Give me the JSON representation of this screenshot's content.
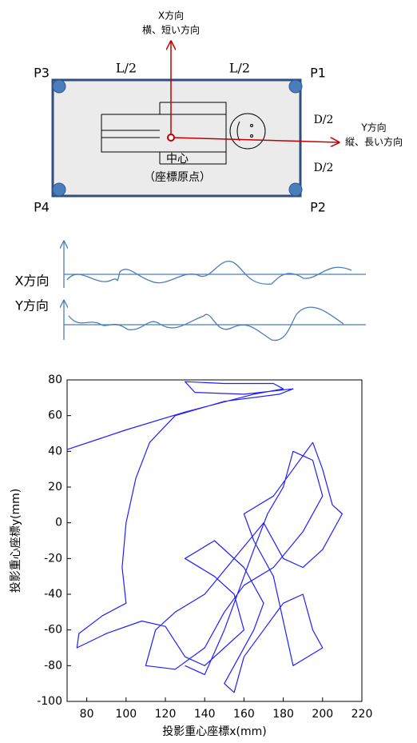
{
  "diagram": {
    "x_direction": "X方向",
    "x_direction_desc": "横、短い方向",
    "y_direction": "Y方向",
    "y_direction_desc": "縦、長い方向",
    "corners": [
      "P3",
      "P1",
      "P4",
      "P2"
    ],
    "length_labels": [
      "L/2",
      "L/2"
    ],
    "depth_labels": [
      "D/2",
      "D/2"
    ],
    "center": "中心",
    "origin": "（座標原点）",
    "wave_labels": [
      "X方向",
      "Y方向"
    ]
  },
  "chart_data": {
    "type": "line",
    "xlabel": "投影重心座標x(mm)",
    "ylabel": "投影重心座標y(mm)",
    "color": "#1f1fff",
    "x": [
      70,
      100,
      130,
      165,
      180,
      175,
      150,
      130,
      135,
      160,
      185,
      178,
      150,
      125,
      112,
      105,
      100,
      98,
      100,
      88,
      76,
      75,
      90,
      108,
      120,
      130,
      140,
      150,
      160,
      155,
      145,
      130,
      145,
      160,
      170,
      165,
      150,
      155,
      160,
      170,
      180,
      190,
      195,
      200,
      185,
      180,
      175,
      165,
      160,
      175,
      185,
      195,
      200,
      205,
      210,
      200,
      190,
      180,
      170,
      155,
      140,
      125,
      115,
      110,
      125,
      140,
      150,
      160,
      175,
      190,
      200,
      195,
      185,
      180,
      172,
      165,
      150,
      140,
      130
    ],
    "values": [
      41,
      52,
      62,
      72,
      75,
      78,
      78,
      79,
      73,
      72,
      75,
      72,
      68,
      60,
      45,
      25,
      0,
      -25,
      -45,
      -52,
      -62,
      -70,
      -62,
      -55,
      -58,
      -75,
      -80,
      -70,
      -60,
      -40,
      -30,
      -20,
      -10,
      -25,
      -45,
      -60,
      -90,
      -95,
      -75,
      -60,
      -45,
      -40,
      -60,
      -70,
      -80,
      -55,
      -30,
      -10,
      5,
      15,
      30,
      45,
      30,
      10,
      5,
      -15,
      -25,
      -20,
      0,
      -20,
      -40,
      -50,
      -60,
      -80,
      -82,
      -70,
      -50,
      -35,
      -25,
      -5,
      15,
      35,
      40,
      20,
      5,
      -15,
      -60,
      -85,
      -80
    ],
    "xlim": [
      70,
      220
    ],
    "xticks": [
      80,
      100,
      120,
      140,
      160,
      180,
      200,
      220
    ],
    "ylim": [
      -100,
      80
    ],
    "yticks": [
      -100,
      -80,
      -60,
      -40,
      -20,
      0,
      20,
      40,
      60,
      80
    ]
  }
}
